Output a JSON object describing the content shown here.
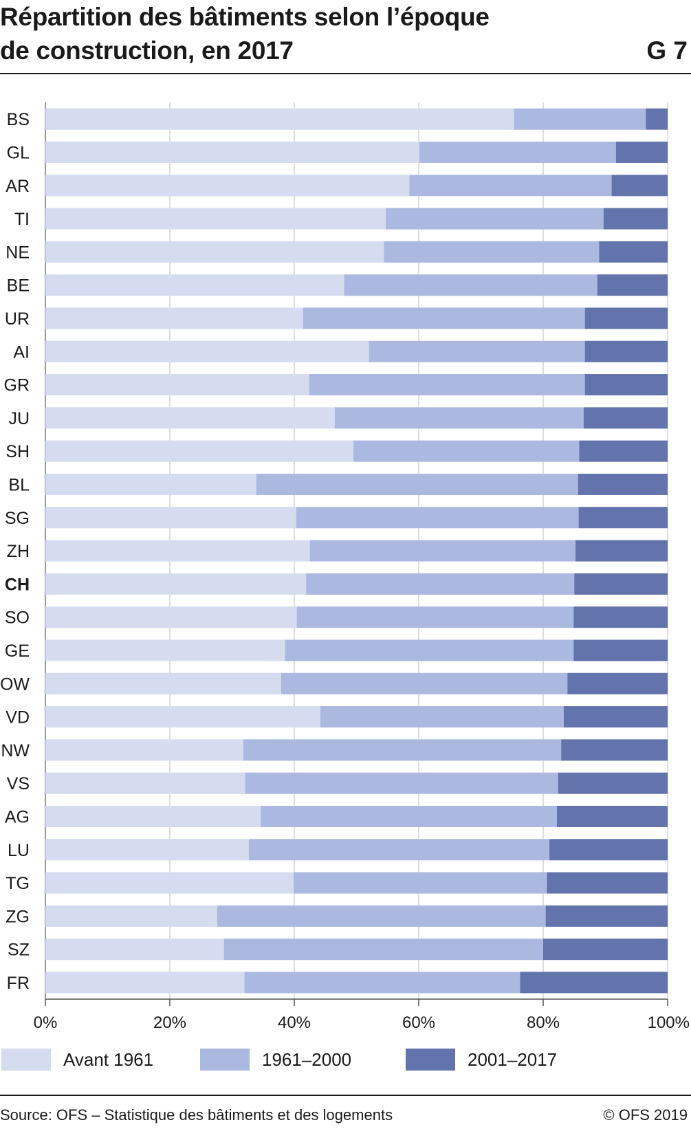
{
  "header": {
    "title_line1": "Répartition des bâtiments selon l’époque",
    "title_line2": "de construction, en 2017",
    "code": "G 7"
  },
  "footer": {
    "source": "Source: OFS – Statistique des bâtiments et des logements",
    "copyright": "© OFS 2019"
  },
  "colors": {
    "avant_1961": "#d6dcf0",
    "1961_2000": "#abb9e1",
    "2001_2017": "#6373ab",
    "band": "#eeeeee",
    "grid": "#c8c8c8",
    "axis": "#555555"
  },
  "chart_data": {
    "type": "bar",
    "orientation": "horizontal",
    "stacked": true,
    "categories": [
      "BS",
      "GL",
      "AR",
      "TI",
      "NE",
      "BE",
      "UR",
      "AI",
      "GR",
      "JU",
      "SH",
      "BL",
      "SG",
      "ZH",
      "CH",
      "SO",
      "GE",
      "OW",
      "VD",
      "NW",
      "VS",
      "AG",
      "LU",
      "TG",
      "ZG",
      "SZ",
      "FR"
    ],
    "highlight_category": "CH",
    "series": [
      {
        "name": "Avant 1961",
        "values": [
          75.3,
          60.1,
          58.5,
          54.7,
          54.4,
          48.0,
          41.4,
          52.0,
          42.4,
          46.5,
          49.5,
          33.9,
          40.3,
          42.5,
          41.9,
          40.4,
          38.5,
          37.9,
          44.2,
          31.8,
          32.1,
          34.6,
          32.7,
          39.9,
          27.6,
          28.7,
          32.0
        ]
      },
      {
        "name": "1961–2000",
        "values": [
          21.2,
          31.6,
          32.5,
          35.0,
          34.6,
          40.7,
          45.3,
          34.7,
          44.3,
          40.0,
          36.3,
          51.7,
          45.4,
          42.7,
          43.1,
          44.5,
          46.4,
          46.0,
          39.1,
          51.1,
          50.3,
          47.6,
          48.3,
          40.7,
          52.8,
          51.3,
          44.3
        ]
      },
      {
        "name": "2001–2017",
        "values": [
          3.5,
          8.3,
          9.0,
          10.3,
          11.0,
          11.3,
          13.3,
          13.3,
          13.3,
          13.5,
          14.2,
          14.4,
          14.3,
          14.8,
          15.0,
          15.1,
          15.1,
          16.1,
          16.7,
          17.1,
          17.6,
          17.8,
          19.0,
          19.4,
          19.6,
          20.0,
          23.7
        ]
      }
    ],
    "x_ticks": [
      "0%",
      "20%",
      "40%",
      "60%",
      "80%",
      "100%"
    ],
    "xlim": [
      0,
      100
    ],
    "grid": true,
    "legend_position": "bottom"
  }
}
